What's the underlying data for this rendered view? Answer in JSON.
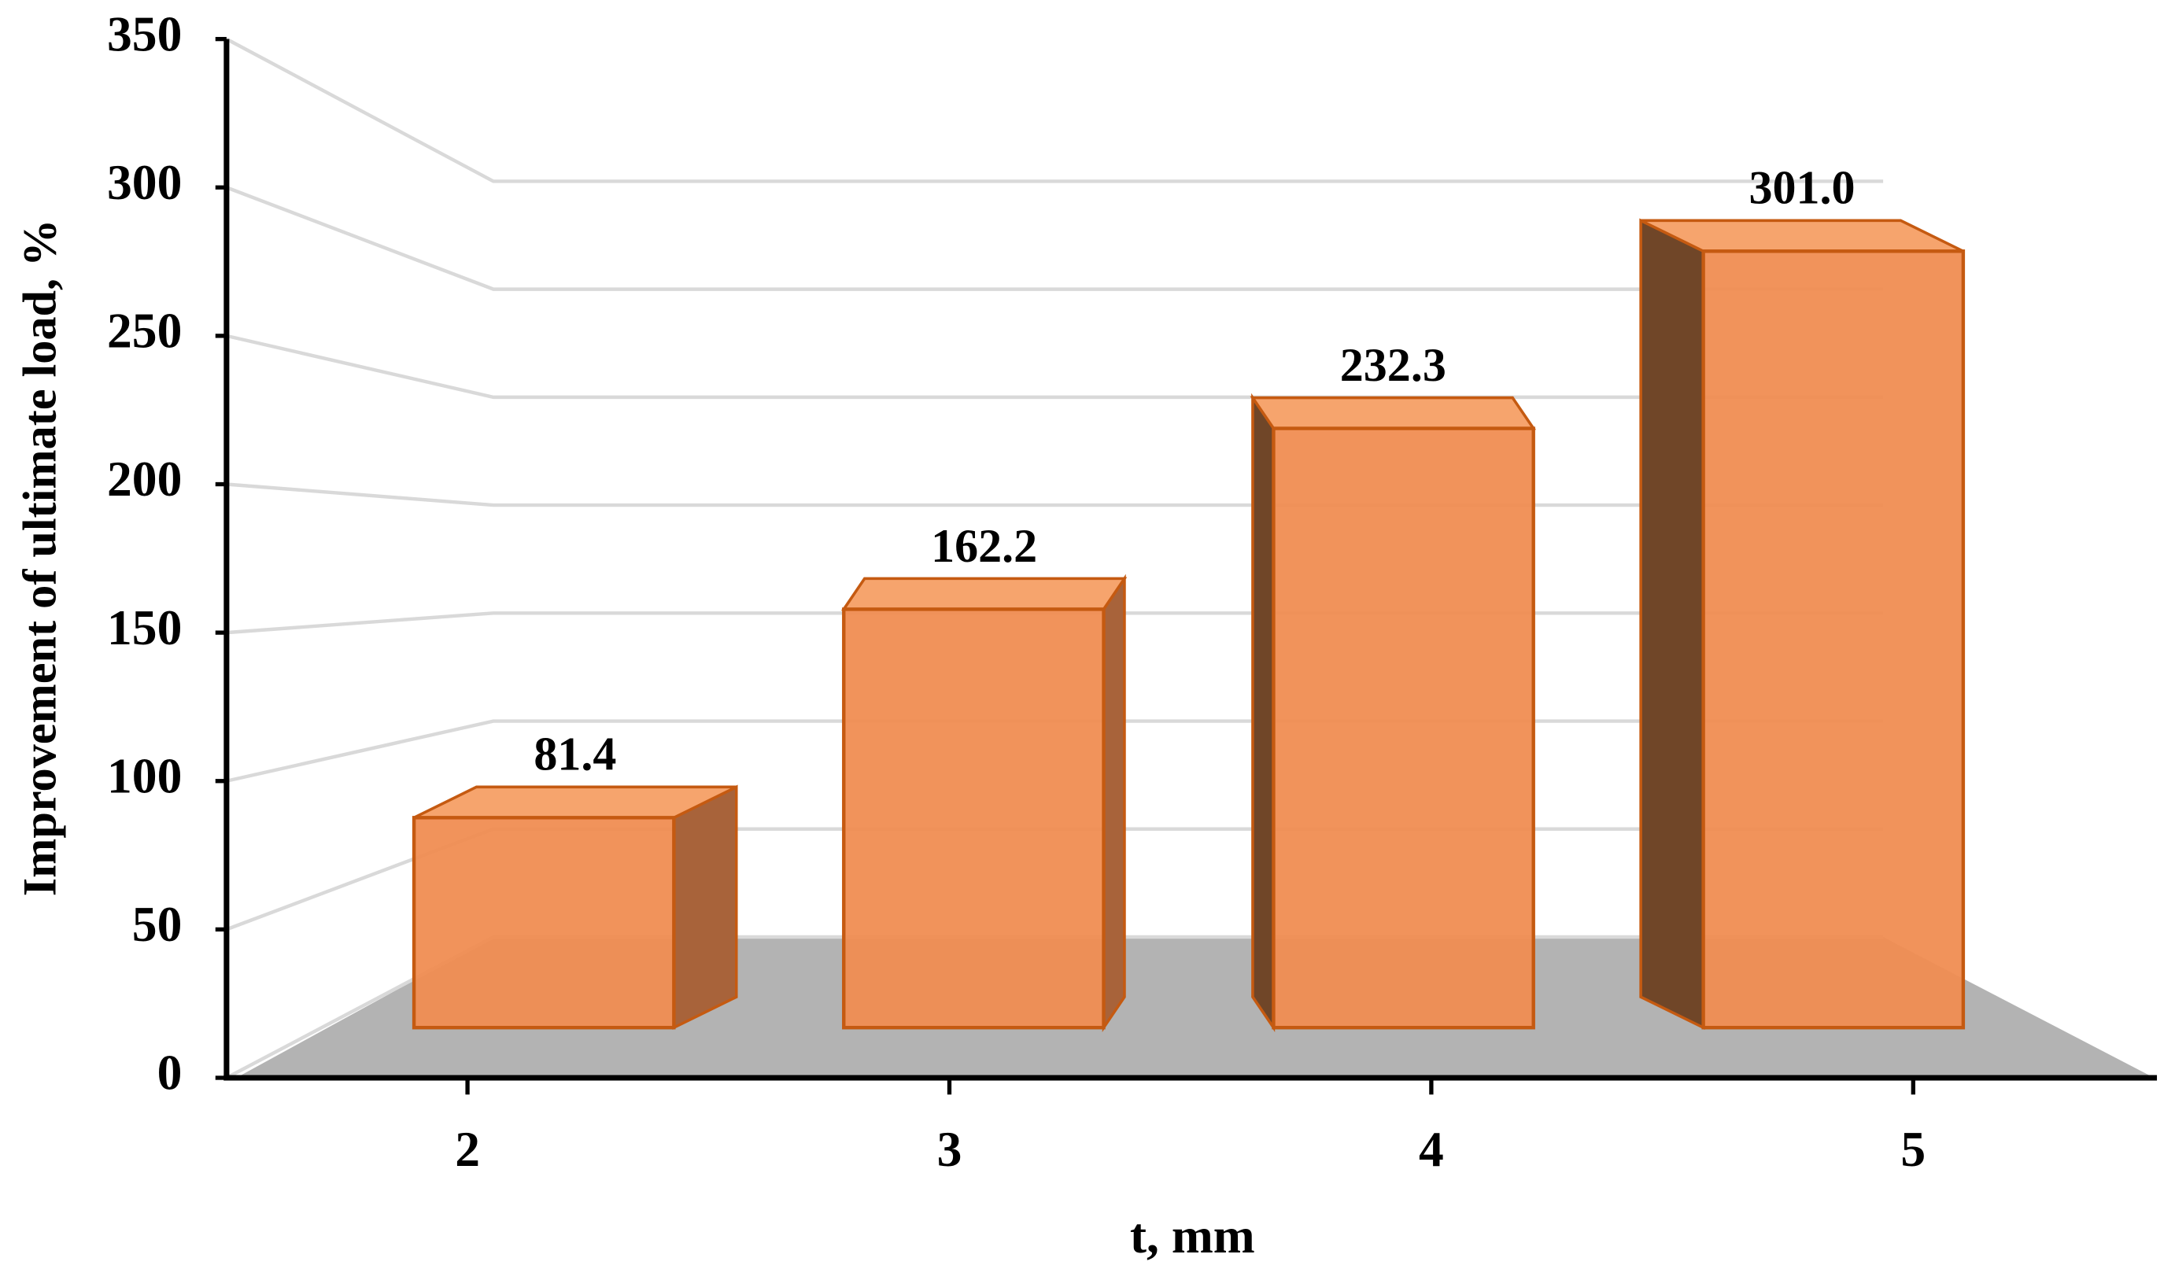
{
  "chart_data": {
    "type": "bar3d",
    "x_label": "t, mm",
    "y_label": "Improvement of ultimate load, %",
    "categories": [
      "2",
      "3",
      "4",
      "5"
    ],
    "values": [
      81.4,
      162.2,
      232.3,
      301.0
    ],
    "value_labels": [
      "81.4",
      "162.2",
      "232.3",
      "301.0"
    ],
    "color": "#f08d52",
    "ylim": [
      0,
      350
    ],
    "yticks": [
      0,
      50,
      100,
      150,
      200,
      250,
      300,
      350
    ],
    "grid": true
  }
}
